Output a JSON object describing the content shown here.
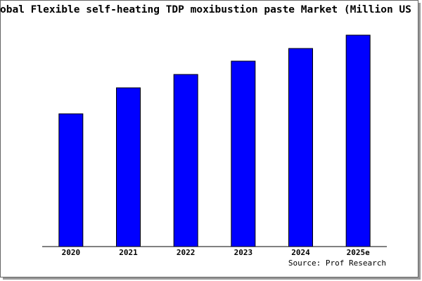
{
  "chart_data": {
    "type": "bar",
    "title": "obal Flexible self-heating TDP moxibustion paste Market (Million US",
    "categories": [
      "2020",
      "2021",
      "2022",
      "2023",
      "2024",
      "2025e"
    ],
    "values": [
      189,
      226,
      245,
      264,
      282,
      301
    ],
    "color": "#0000ff",
    "ylim": [
      0,
      303
    ],
    "source": "Source: Prof Research"
  }
}
